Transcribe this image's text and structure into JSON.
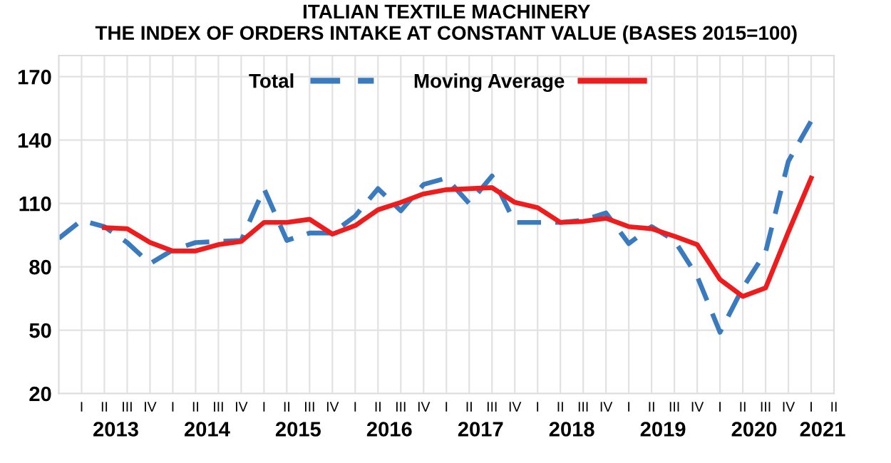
{
  "chart_data": {
    "type": "line",
    "title": "ITALIAN TEXTILE MACHINERY\nTHE INDEX OF ORDERS INTAKE AT CONSTANT VALUE (BASES 2015=100)",
    "categories": [
      null,
      "I",
      "II",
      "III",
      "IV",
      "I",
      "II",
      "III",
      "IV",
      "I",
      "II",
      "III",
      "IV",
      "I",
      "II",
      "III",
      "IV",
      "I",
      "II",
      "III",
      "IV",
      "I",
      "II",
      "III",
      "IV",
      "I",
      "II",
      "III",
      "IV",
      "I",
      "II",
      "III",
      "IV",
      "I",
      "II"
    ],
    "series": [
      {
        "name": "Total",
        "color": "#3a7abf",
        "line_style": "dashed",
        "values": [
          93.5,
          102,
          99,
          91.5,
          81.5,
          88,
          91.5,
          92,
          92.5,
          117,
          92.5,
          96,
          96,
          104,
          117,
          106.5,
          119,
          122,
          110,
          123,
          101,
          101,
          101,
          102,
          105.5,
          91,
          99,
          92.5,
          75.5,
          49,
          70,
          87,
          130,
          149,
          null
        ]
      },
      {
        "name": "Moving Average",
        "color": "#ee1c1c",
        "line_style": "solid",
        "values": [
          null,
          null,
          98.5,
          98,
          91.5,
          87.5,
          87.5,
          90.5,
          92,
          101,
          101,
          102.5,
          95.5,
          99.5,
          107,
          110.5,
          114.5,
          116.5,
          117,
          117.5,
          110.5,
          108,
          101,
          101.5,
          103,
          99,
          98,
          94.5,
          90.5,
          74,
          66,
          70,
          96.5,
          122,
          null
        ]
      }
    ],
    "annotations": [
      "2013",
      "2014",
      "2015",
      "2016",
      "2017",
      "2018",
      "2019",
      "2020",
      "2021"
    ],
    "ylim": [
      20,
      180
    ],
    "yticks": [
      20,
      50,
      80,
      110,
      140,
      170
    ],
    "grid": true,
    "legend": "top"
  }
}
